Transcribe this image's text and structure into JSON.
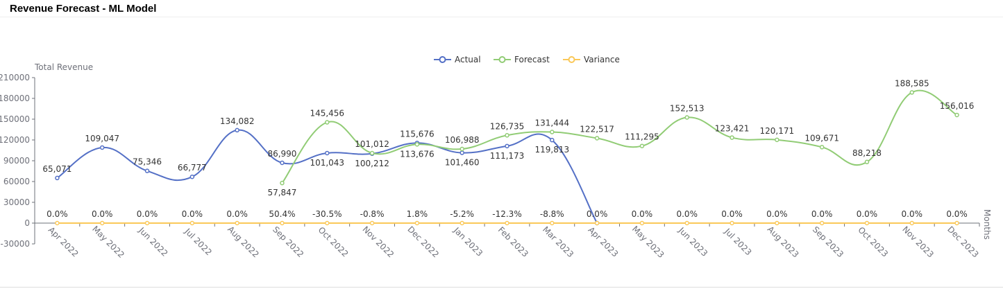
{
  "title": "Revenue Forecast - ML Model",
  "chart_data": {
    "type": "line",
    "smooth": true,
    "ylabel": "Total Revenue",
    "xlabel": "Months",
    "ylim": [
      -30000,
      210000
    ],
    "yticks": [
      -30000,
      0,
      30000,
      60000,
      90000,
      120000,
      150000,
      180000,
      210000
    ],
    "legend_position": "top-center",
    "grid": false,
    "categories": [
      "Apr 2022",
      "May 2022",
      "Jun 2022",
      "Jul 2022",
      "Aug 2022",
      "Sep 2022",
      "Oct 2022",
      "Nov 2022",
      "Dec 2022",
      "Jan 2023",
      "Feb 2023",
      "Mar 2023",
      "Apr 2023",
      "May 2023",
      "Jun 2023",
      "Jul 2023",
      "Aug 2023",
      "Sep 2023",
      "Oct 2023",
      "Nov 2023",
      "Dec 2023"
    ],
    "series": [
      {
        "name": "Actual",
        "color": "#5470c6",
        "values": [
          65071,
          109047,
          75346,
          66777,
          134082,
          86990,
          101043,
          100212,
          115676,
          101460,
          111173,
          119813,
          0,
          null,
          null,
          null,
          null,
          null,
          null,
          null,
          null
        ]
      },
      {
        "name": "Forecast",
        "color": "#91cc75",
        "values": [
          null,
          null,
          null,
          null,
          null,
          57847,
          145456,
          101012,
          113676,
          106988,
          126735,
          131444,
          122517,
          111295,
          152513,
          123421,
          120171,
          109671,
          88218,
          188585,
          156016
        ]
      },
      {
        "name": "Variance",
        "color": "#fac858",
        "values": [
          0,
          0,
          0,
          0,
          0,
          50.4,
          -30.5,
          -0.8,
          1.8,
          -5.2,
          -12.3,
          -8.8,
          0,
          0,
          0,
          0,
          0,
          0,
          0,
          0,
          0
        ],
        "labels": [
          "0.0%",
          "0.0%",
          "0.0%",
          "0.0%",
          "0.0%",
          "50.4%",
          "-30.5%",
          "-0.8%",
          "1.8%",
          "-5.2%",
          "-12.3%",
          "-8.8%",
          "0.0%",
          "0.0%",
          "0.0%",
          "0.0%",
          "0.0%",
          "0.0%",
          "0.0%",
          "0.0%",
          "0.0%"
        ]
      }
    ]
  }
}
